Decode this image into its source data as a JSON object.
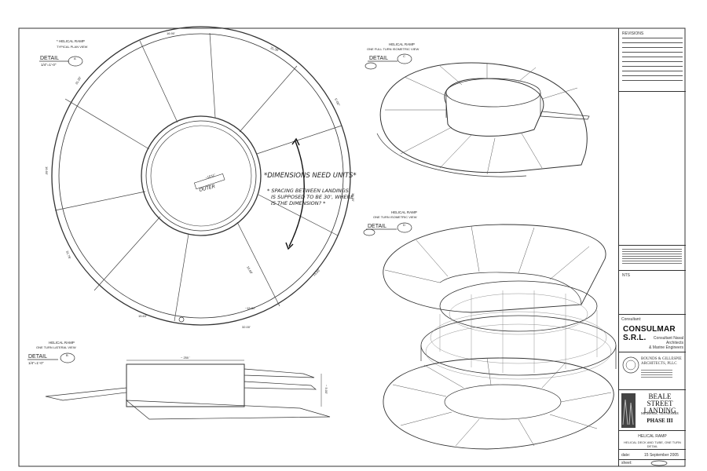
{
  "detail_a": {
    "title": "* HELICAL RAMP",
    "subtitle": "TYPICAL PLAN VIEW",
    "detail_label": "DETAIL",
    "detail_id": "A",
    "scale": "1/4\"=1'-0\"",
    "center_label": "OUTER",
    "center_dim": "~15'11\"",
    "dims": [
      "16.90'",
      "31.35'",
      "5'-00\"",
      "31.20'",
      "15.50'",
      "32.00'",
      "15.63'",
      "31.75'",
      "16.60'",
      "~15.60'",
      "31.20'",
      "16.60'"
    ]
  },
  "annotations": {
    "note1": "*DIMENSIONS NEED UNITS*",
    "note2_line1": "* SPACING BETWEEN LANDINGS",
    "note2_line2": "IS SUPPOSED TO BE 30', WHERE",
    "note2_line3": "IS THE DIMENSION? *"
  },
  "detail_b": {
    "title": "HELICAL RAMP",
    "subtitle": "ONE TURN LATERAL VIEW",
    "detail_label": "DETAIL",
    "detail_id": "B",
    "scale": "1/4\"=1'-0\"",
    "dim_top": "~ 250 '",
    "dim_side": "~ 5.00'"
  },
  "detail_c": {
    "title": "HELICAL RAMP",
    "subtitle": "ONE FULL TURN ISOMETRIC VIEW",
    "detail_label": "DETAIL",
    "detail_id": "C"
  },
  "detail_d": {
    "title": "HELICAL RAMP",
    "subtitle": "ONE TURN ISOMETRIC VIEW",
    "detail_label": "DETAIL",
    "detail_id": "D"
  },
  "title_block": {
    "revisions_label": "REVISIONS",
    "notes_label": "NTS",
    "consultant_label": "Consultant:",
    "firm_name": "CONSULMAR S.R.L.",
    "firm_sub1": "Consultant Naval Architects",
    "firm_sub2": "& Marine Engineers",
    "architect_line1": "BOUNDS & GILLESPIE",
    "architect_line2": "ARCHITECTS, PLLC",
    "project_line1": "BEALE STREET",
    "project_line2": "LANDING",
    "project_city": "MEMPHIS, TENNESSEE",
    "project_phase": "PHASE III",
    "sheet_title": "HELICAL RAMP",
    "sheet_subtitle": "HELICAL DECK AND TUBE, ONE TURN DETAIL",
    "date_label": "date:",
    "date_value": "15 September 2005",
    "sheet_label": "sheet:"
  }
}
